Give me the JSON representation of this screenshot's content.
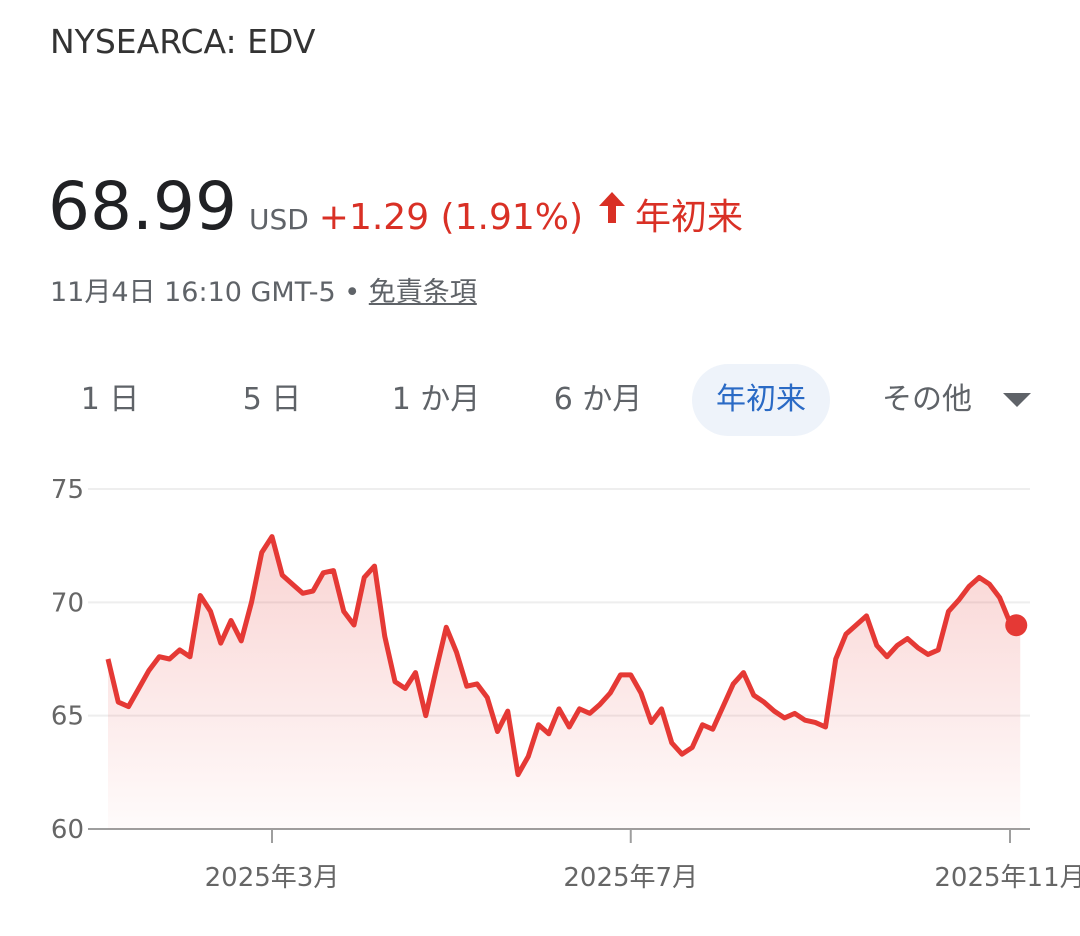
{
  "quote": {
    "symbol": "NYSEARCA: EDV",
    "price": "68.99",
    "currency": "USD",
    "change": "+1.29 (1.91%)",
    "period": "年初来",
    "timestamp": "11月4日 16:10 GMT-5",
    "separator": "•",
    "disclaimer": "免責条項"
  },
  "tabs": {
    "items": [
      "1 日",
      "5 日",
      "1 か月",
      "6 か月",
      "年初来",
      "その他"
    ],
    "selected": 4
  },
  "chart_data": {
    "type": "line",
    "color": "#e53935",
    "grid": true,
    "ylim": [
      60,
      75
    ],
    "yticks": [
      60,
      65,
      70,
      75
    ],
    "categories": [
      null,
      null,
      null,
      null,
      null,
      null,
      null,
      null,
      null,
      null,
      null,
      null,
      null,
      null,
      null,
      null,
      "2025年3月",
      null,
      null,
      null,
      null,
      null,
      null,
      null,
      null,
      null,
      null,
      null,
      null,
      null,
      null,
      null,
      null,
      null,
      null,
      null,
      null,
      null,
      null,
      null,
      null,
      null,
      null,
      null,
      null,
      null,
      null,
      null,
      null,
      null,
      null,
      "2025年7月",
      null,
      null,
      null,
      null,
      null,
      null,
      null,
      null,
      null,
      null,
      null,
      null,
      null,
      null,
      null,
      null,
      null,
      null,
      null,
      null,
      null,
      null,
      null,
      null,
      null,
      null,
      null,
      null,
      null,
      null,
      null,
      null,
      null,
      null,
      null,
      null,
      "2025年11月",
      null
    ],
    "values": [
      67.5,
      65.6,
      65.4,
      66.2,
      67.0,
      67.6,
      67.5,
      67.9,
      67.6,
      70.3,
      69.6,
      68.2,
      69.2,
      68.3,
      70.0,
      72.2,
      72.9,
      71.2,
      70.8,
      70.4,
      70.5,
      71.3,
      71.4,
      69.6,
      69.0,
      71.1,
      71.6,
      68.5,
      66.5,
      66.2,
      66.9,
      65.0,
      67.0,
      68.9,
      67.8,
      66.3,
      66.4,
      65.8,
      64.3,
      65.2,
      62.4,
      63.2,
      64.6,
      64.2,
      65.3,
      64.5,
      65.3,
      65.1,
      65.5,
      66.0,
      66.8,
      66.8,
      66.0,
      64.7,
      65.3,
      63.8,
      63.3,
      63.6,
      64.6,
      64.4,
      65.4,
      66.4,
      66.9,
      65.9,
      65.6,
      65.2,
      64.9,
      65.1,
      64.8,
      64.7,
      64.5,
      67.5,
      68.6,
      69.0,
      69.4,
      68.1,
      67.6,
      68.1,
      68.4,
      68.0,
      67.7,
      67.9,
      69.6,
      70.1,
      70.7,
      71.1,
      70.8,
      70.2,
      69.1,
      68.99
    ]
  }
}
